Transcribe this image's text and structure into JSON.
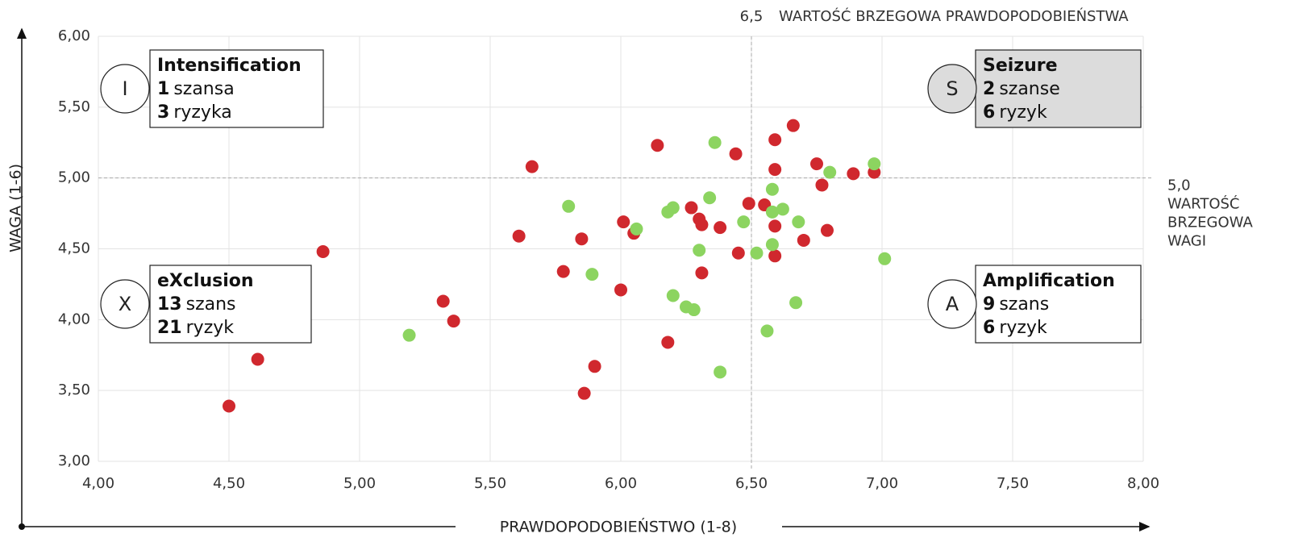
{
  "chart_data": {
    "type": "scatter",
    "x_label": "PRAWDOPODOBIEŃSTWO (1-8)",
    "y_label": "WAGA (1-6)",
    "xlim": [
      4,
      8
    ],
    "ylim": [
      3,
      6
    ],
    "xticks": [
      {
        "value": 4,
        "label": "4,00"
      },
      {
        "value": 4.5,
        "label": "4,50"
      },
      {
        "value": 5,
        "label": "5,00"
      },
      {
        "value": 5.5,
        "label": "5,50"
      },
      {
        "value": 6,
        "label": "6,00"
      },
      {
        "value": 6.5,
        "label": "6,50"
      },
      {
        "value": 7,
        "label": "7,00"
      },
      {
        "value": 7.5,
        "label": "7,50"
      },
      {
        "value": 8,
        "label": "8,00"
      }
    ],
    "yticks": [
      {
        "value": 3,
        "label": "3,00"
      },
      {
        "value": 3.5,
        "label": "3,50"
      },
      {
        "value": 4,
        "label": "4,00"
      },
      {
        "value": 4.5,
        "label": "4,50"
      },
      {
        "value": 5,
        "label": "5,00"
      },
      {
        "value": 5.5,
        "label": "5,50"
      },
      {
        "value": 6,
        "label": "6,00"
      }
    ],
    "grid": true,
    "thresholds": {
      "x": {
        "value": 6.5,
        "label": "6,5",
        "text": "WARTOŚĆ BRZEGOWA PRAWDOPODOBIEŃSTWA"
      },
      "y": {
        "value": 5,
        "label": "5,0",
        "text": [
          "WARTOŚĆ",
          "BRZEGOWA",
          "WAGI"
        ]
      }
    },
    "quadrants": [
      {
        "letter": "I",
        "title": "Intensification",
        "lines": [
          {
            "count": 1,
            "word": "szansa"
          },
          {
            "count": 3,
            "word": "ryzyka"
          }
        ],
        "highlight": false
      },
      {
        "letter": "S",
        "title": "Seizure",
        "lines": [
          {
            "count": 2,
            "word": "szanse"
          },
          {
            "count": 6,
            "word": "ryzyk"
          }
        ],
        "highlight": true
      },
      {
        "letter": "X",
        "title": "eXclusion",
        "lines": [
          {
            "count": 13,
            "word": "szans"
          },
          {
            "count": 21,
            "word": "ryzyk"
          }
        ],
        "highlight": false
      },
      {
        "letter": "A",
        "title": "Amplification",
        "lines": [
          {
            "count": 9,
            "word": "szans"
          },
          {
            "count": 6,
            "word": "ryzyk"
          }
        ],
        "highlight": false
      }
    ],
    "series": [
      {
        "color": "#d0282e",
        "x": [
          4.5,
          4.61,
          4.86,
          5.32,
          5.36,
          5.61,
          5.66,
          5.78,
          5.85,
          5.86,
          5.9,
          6.0,
          6.01,
          6.05,
          6.14,
          6.18,
          6.27,
          6.3,
          6.31,
          6.31,
          6.38,
          6.44,
          6.45,
          6.49,
          6.55,
          6.59,
          6.59,
          6.59,
          6.59,
          6.66,
          6.7,
          6.75,
          6.77,
          6.79,
          6.89,
          6.97
        ],
        "values": [
          3.39,
          3.72,
          4.48,
          4.13,
          3.99,
          4.59,
          5.08,
          4.34,
          4.57,
          3.48,
          3.67,
          4.21,
          4.69,
          4.61,
          5.23,
          3.84,
          4.79,
          4.71,
          4.67,
          4.33,
          4.65,
          5.17,
          4.47,
          4.82,
          4.81,
          5.27,
          5.06,
          4.66,
          4.45,
          5.37,
          4.56,
          5.1,
          4.95,
          4.63,
          5.03,
          5.04
        ]
      },
      {
        "color": "#8cd460",
        "x": [
          5.19,
          5.8,
          5.89,
          6.06,
          6.18,
          6.2,
          6.2,
          6.25,
          6.28,
          6.3,
          6.34,
          6.36,
          6.38,
          6.47,
          6.52,
          6.56,
          6.58,
          6.58,
          6.58,
          6.62,
          6.67,
          6.68,
          6.8,
          6.97,
          7.01
        ],
        "values": [
          3.89,
          4.8,
          4.32,
          4.64,
          4.76,
          4.79,
          4.17,
          4.09,
          4.07,
          4.49,
          4.86,
          5.25,
          3.63,
          4.69,
          4.47,
          3.92,
          4.92,
          4.76,
          4.53,
          4.78,
          4.12,
          4.69,
          5.04,
          5.1,
          4.43
        ]
      }
    ]
  }
}
